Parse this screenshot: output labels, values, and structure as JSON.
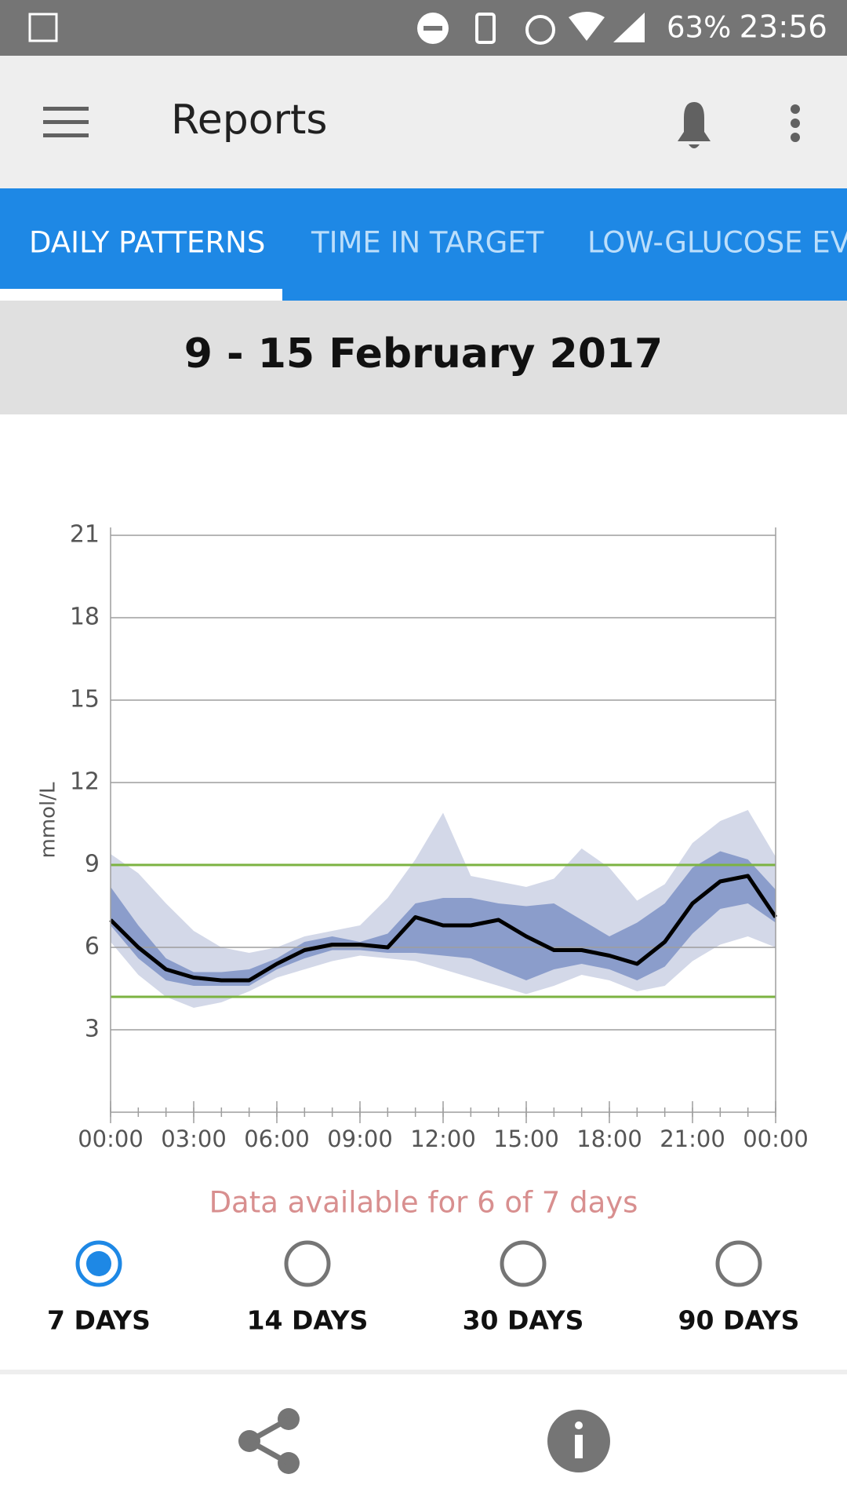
{
  "status_bar": {
    "battery": "63%",
    "time": "23:56"
  },
  "app_bar": {
    "title": "Reports"
  },
  "tabs": [
    "DAILY PATTERNS",
    "TIME IN TARGET",
    "LOW-GLUCOSE EVE"
  ],
  "date_range": "9 - 15 February 2017",
  "chart_data": {
    "type": "line",
    "y_label": "mmol/L",
    "x": [
      0,
      1,
      2,
      3,
      4,
      5,
      6,
      7,
      8,
      9,
      10,
      11,
      12,
      13,
      14,
      15,
      16,
      17,
      18,
      19,
      20,
      21,
      22,
      23,
      24
    ],
    "xlim": [
      0,
      24
    ],
    "xticks": [
      {
        "value": 0,
        "label": "00:00"
      },
      {
        "value": 3,
        "label": "03:00"
      },
      {
        "value": 6,
        "label": "06:00"
      },
      {
        "value": 9,
        "label": "09:00"
      },
      {
        "value": 12,
        "label": "12:00"
      },
      {
        "value": 15,
        "label": "15:00"
      },
      {
        "value": 18,
        "label": "18:00"
      },
      {
        "value": 21,
        "label": "21:00"
      },
      {
        "value": 24,
        "label": "00:00"
      }
    ],
    "ylim": [
      0,
      21
    ],
    "yticks": [
      3,
      6,
      9,
      12,
      15,
      18,
      21
    ],
    "grid": true,
    "target": {
      "color": "#7cb342",
      "values": [
        4.2,
        9
      ]
    },
    "bands": [
      {
        "color": "#d3d8e8",
        "low": [
          6.2,
          5.0,
          4.2,
          3.8,
          4.0,
          4.4,
          4.9,
          5.2,
          5.5,
          5.7,
          5.6,
          5.5,
          5.2,
          4.9,
          4.6,
          4.3,
          4.6,
          5.0,
          4.8,
          4.4,
          4.6,
          5.5,
          6.1,
          6.4,
          6.0
        ],
        "high": [
          9.4,
          8.7,
          7.6,
          6.6,
          6.0,
          5.8,
          6.0,
          6.4,
          6.6,
          6.8,
          7.8,
          9.2,
          10.9,
          8.6,
          8.4,
          8.2,
          8.5,
          9.6,
          8.9,
          7.7,
          8.3,
          9.8,
          10.6,
          11.0,
          9.3
        ]
      },
      {
        "color": "#8b9dcb",
        "low": [
          6.8,
          5.6,
          4.8,
          4.6,
          4.6,
          4.6,
          5.2,
          5.6,
          5.9,
          5.9,
          5.8,
          5.8,
          5.7,
          5.6,
          5.2,
          4.8,
          5.2,
          5.4,
          5.2,
          4.8,
          5.3,
          6.5,
          7.4,
          7.6,
          6.9
        ],
        "high": [
          8.2,
          6.8,
          5.6,
          5.1,
          5.1,
          5.2,
          5.6,
          6.2,
          6.4,
          6.2,
          6.5,
          7.6,
          7.8,
          7.8,
          7.6,
          7.5,
          7.6,
          7.0,
          6.4,
          6.9,
          7.6,
          8.9,
          9.5,
          9.2,
          8.1
        ]
      }
    ],
    "series": [
      {
        "color": "#000000",
        "values": [
          7.0,
          6.0,
          5.2,
          4.9,
          4.8,
          4.8,
          5.4,
          5.9,
          6.1,
          6.1,
          6.0,
          7.1,
          6.8,
          6.8,
          7.0,
          6.4,
          5.9,
          5.9,
          5.7,
          5.4,
          6.2,
          7.6,
          8.4,
          8.6,
          7.1
        ]
      }
    ]
  },
  "note": "Data available for 6 of 7 days",
  "range_options": [
    {
      "label": "7 DAYS",
      "selected": true
    },
    {
      "label": "14 DAYS",
      "selected": false
    },
    {
      "label": "30 DAYS",
      "selected": false
    },
    {
      "label": "90 DAYS",
      "selected": false
    }
  ]
}
